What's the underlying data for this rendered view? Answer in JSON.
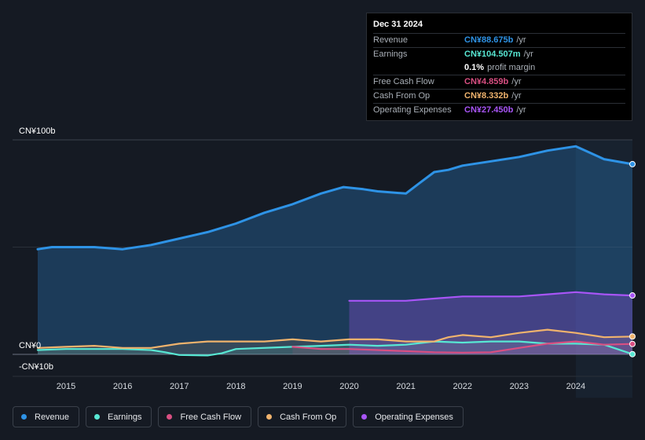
{
  "chart_data": {
    "type": "area",
    "ylabels": {
      "top": "CN¥100b",
      "zero": "CN¥0",
      "bottom": "-CN¥10b"
    },
    "ylim": [
      -10,
      100
    ],
    "x_ticks": [
      "2015",
      "2016",
      "2017",
      "2018",
      "2019",
      "2020",
      "2021",
      "2022",
      "2023",
      "2024"
    ],
    "x_range": [
      2014.5,
      2025.0
    ],
    "forecast_start": 2024.0,
    "series": [
      {
        "name": "Revenue",
        "color": "#2e93e6",
        "points": [
          [
            2014.5,
            49
          ],
          [
            2014.75,
            50
          ],
          [
            2015.0,
            50
          ],
          [
            2015.5,
            50
          ],
          [
            2016.0,
            49
          ],
          [
            2016.5,
            51
          ],
          [
            2017.0,
            54
          ],
          [
            2017.5,
            57
          ],
          [
            2018.0,
            61
          ],
          [
            2018.5,
            66
          ],
          [
            2019.0,
            70
          ],
          [
            2019.5,
            75
          ],
          [
            2019.9,
            78
          ],
          [
            2020.25,
            77
          ],
          [
            2020.5,
            76
          ],
          [
            2021.0,
            75
          ],
          [
            2021.25,
            80
          ],
          [
            2021.5,
            85
          ],
          [
            2021.75,
            86
          ],
          [
            2022.0,
            88
          ],
          [
            2022.5,
            90
          ],
          [
            2023.0,
            92
          ],
          [
            2023.5,
            95
          ],
          [
            2024.0,
            97
          ],
          [
            2024.25,
            94
          ],
          [
            2024.5,
            91
          ],
          [
            2025.0,
            88.675
          ]
        ]
      },
      {
        "name": "Earnings",
        "color": "#58e8d4",
        "points": [
          [
            2014.5,
            2
          ],
          [
            2015.0,
            2.5
          ],
          [
            2016.0,
            2.5
          ],
          [
            2016.5,
            2
          ],
          [
            2016.75,
            1
          ],
          [
            2017.0,
            -0.3
          ],
          [
            2017.5,
            -0.5
          ],
          [
            2017.75,
            0.5
          ],
          [
            2018.0,
            2.5
          ],
          [
            2019.0,
            3.5
          ],
          [
            2019.5,
            4
          ],
          [
            2020.0,
            4.5
          ],
          [
            2020.5,
            4
          ],
          [
            2021.0,
            4.5
          ],
          [
            2021.5,
            6
          ],
          [
            2022.0,
            5.5
          ],
          [
            2022.5,
            6
          ],
          [
            2023.0,
            6
          ],
          [
            2023.5,
            5
          ],
          [
            2024.0,
            5
          ],
          [
            2024.5,
            4.5
          ],
          [
            2025.0,
            0.1045
          ]
        ]
      },
      {
        "name": "Free Cash Flow",
        "color": "#d94f82",
        "points": [
          [
            2019.0,
            3.5
          ],
          [
            2019.5,
            2.5
          ],
          [
            2020.0,
            2.5
          ],
          [
            2020.5,
            2
          ],
          [
            2021.0,
            1.5
          ],
          [
            2021.5,
            1
          ],
          [
            2022.0,
            0.8
          ],
          [
            2022.5,
            1
          ],
          [
            2023.0,
            3
          ],
          [
            2023.5,
            5
          ],
          [
            2024.0,
            6
          ],
          [
            2024.5,
            4.5
          ],
          [
            2025.0,
            4.859
          ]
        ]
      },
      {
        "name": "Cash From Op",
        "color": "#f0b36d",
        "points": [
          [
            2014.5,
            3
          ],
          [
            2015.0,
            3.5
          ],
          [
            2015.5,
            4
          ],
          [
            2016.0,
            3
          ],
          [
            2016.5,
            3
          ],
          [
            2017.0,
            5
          ],
          [
            2017.5,
            6
          ],
          [
            2018.0,
            6
          ],
          [
            2018.5,
            6
          ],
          [
            2019.0,
            7
          ],
          [
            2019.5,
            6
          ],
          [
            2020.0,
            7
          ],
          [
            2020.5,
            7
          ],
          [
            2021.0,
            6
          ],
          [
            2021.5,
            6
          ],
          [
            2021.75,
            8
          ],
          [
            2022.0,
            9
          ],
          [
            2022.5,
            8
          ],
          [
            2023.0,
            10
          ],
          [
            2023.5,
            11.5
          ],
          [
            2024.0,
            10
          ],
          [
            2024.5,
            8
          ],
          [
            2025.0,
            8.332
          ]
        ]
      },
      {
        "name": "Operating Expenses",
        "color": "#a855f7",
        "points": [
          [
            2020.0,
            25
          ],
          [
            2020.5,
            25
          ],
          [
            2021.0,
            25
          ],
          [
            2021.5,
            26
          ],
          [
            2022.0,
            27
          ],
          [
            2022.5,
            27
          ],
          [
            2023.0,
            27
          ],
          [
            2023.5,
            28
          ],
          [
            2024.0,
            29
          ],
          [
            2024.5,
            28
          ],
          [
            2025.0,
            27.45
          ]
        ]
      }
    ]
  },
  "tooltip": {
    "date": "Dec 31 2024",
    "rows": [
      {
        "label": "Revenue",
        "value": "CN¥88.675b",
        "unit": "/yr",
        "color": "#2e93e6"
      },
      {
        "label": "Earnings",
        "value": "CN¥104.507m",
        "unit": "/yr",
        "color": "#58e8d4"
      },
      {
        "label": "",
        "value": "0.1%",
        "unit": "profit margin",
        "color": "#ffffff"
      },
      {
        "label": "Free Cash Flow",
        "value": "CN¥4.859b",
        "unit": "/yr",
        "color": "#d94f82"
      },
      {
        "label": "Cash From Op",
        "value": "CN¥8.332b",
        "unit": "/yr",
        "color": "#f0b36d"
      },
      {
        "label": "Operating Expenses",
        "value": "CN¥27.450b",
        "unit": "/yr",
        "color": "#a855f7"
      }
    ]
  },
  "legend": [
    {
      "label": "Revenue",
      "color": "#2e93e6"
    },
    {
      "label": "Earnings",
      "color": "#58e8d4"
    },
    {
      "label": "Free Cash Flow",
      "color": "#d94f82"
    },
    {
      "label": "Cash From Op",
      "color": "#f0b36d"
    },
    {
      "label": "Operating Expenses",
      "color": "#a855f7"
    }
  ]
}
